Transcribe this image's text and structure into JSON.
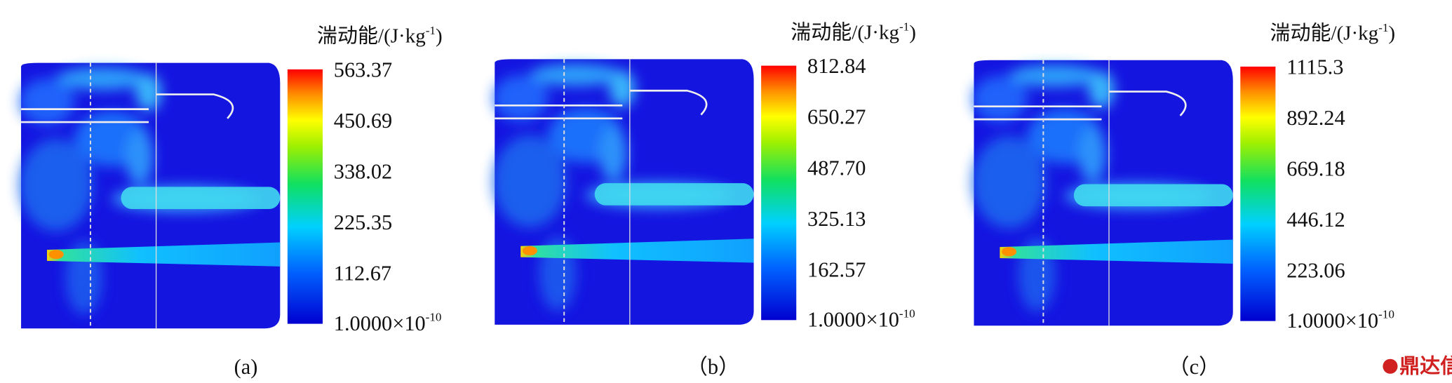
{
  "panels": [
    {
      "caption": "(a)",
      "colorbar": {
        "title": {
          "text": "湍动能/(J·kg",
          "exponent": "-1",
          "close": ")"
        },
        "ticks": [
          "563.37",
          "450.69",
          "338.02",
          "225.35",
          "112.67"
        ],
        "min": {
          "mantissa": "1.0000×10",
          "exponent": "-10"
        }
      }
    },
    {
      "caption": "（b）",
      "colorbar": {
        "title": {
          "text": "湍动能/(J·kg",
          "exponent": "-1",
          "close": ")"
        },
        "ticks": [
          "812.84",
          "650.27",
          "487.70",
          "325.13",
          "162.57"
        ],
        "min": {
          "mantissa": "1.0000×10",
          "exponent": "-10"
        }
      }
    },
    {
      "caption": "（c）",
      "colorbar": {
        "title": {
          "text": "湍动能/(J·kg",
          "exponent": "-1",
          "close": ")"
        },
        "ticks": [
          "1115.3",
          "892.24",
          "669.18",
          "446.12",
          "223.06"
        ],
        "min": {
          "mantissa": "1.0000×10",
          "exponent": "-10"
        }
      }
    }
  ],
  "watermark": "鼎达信"
}
